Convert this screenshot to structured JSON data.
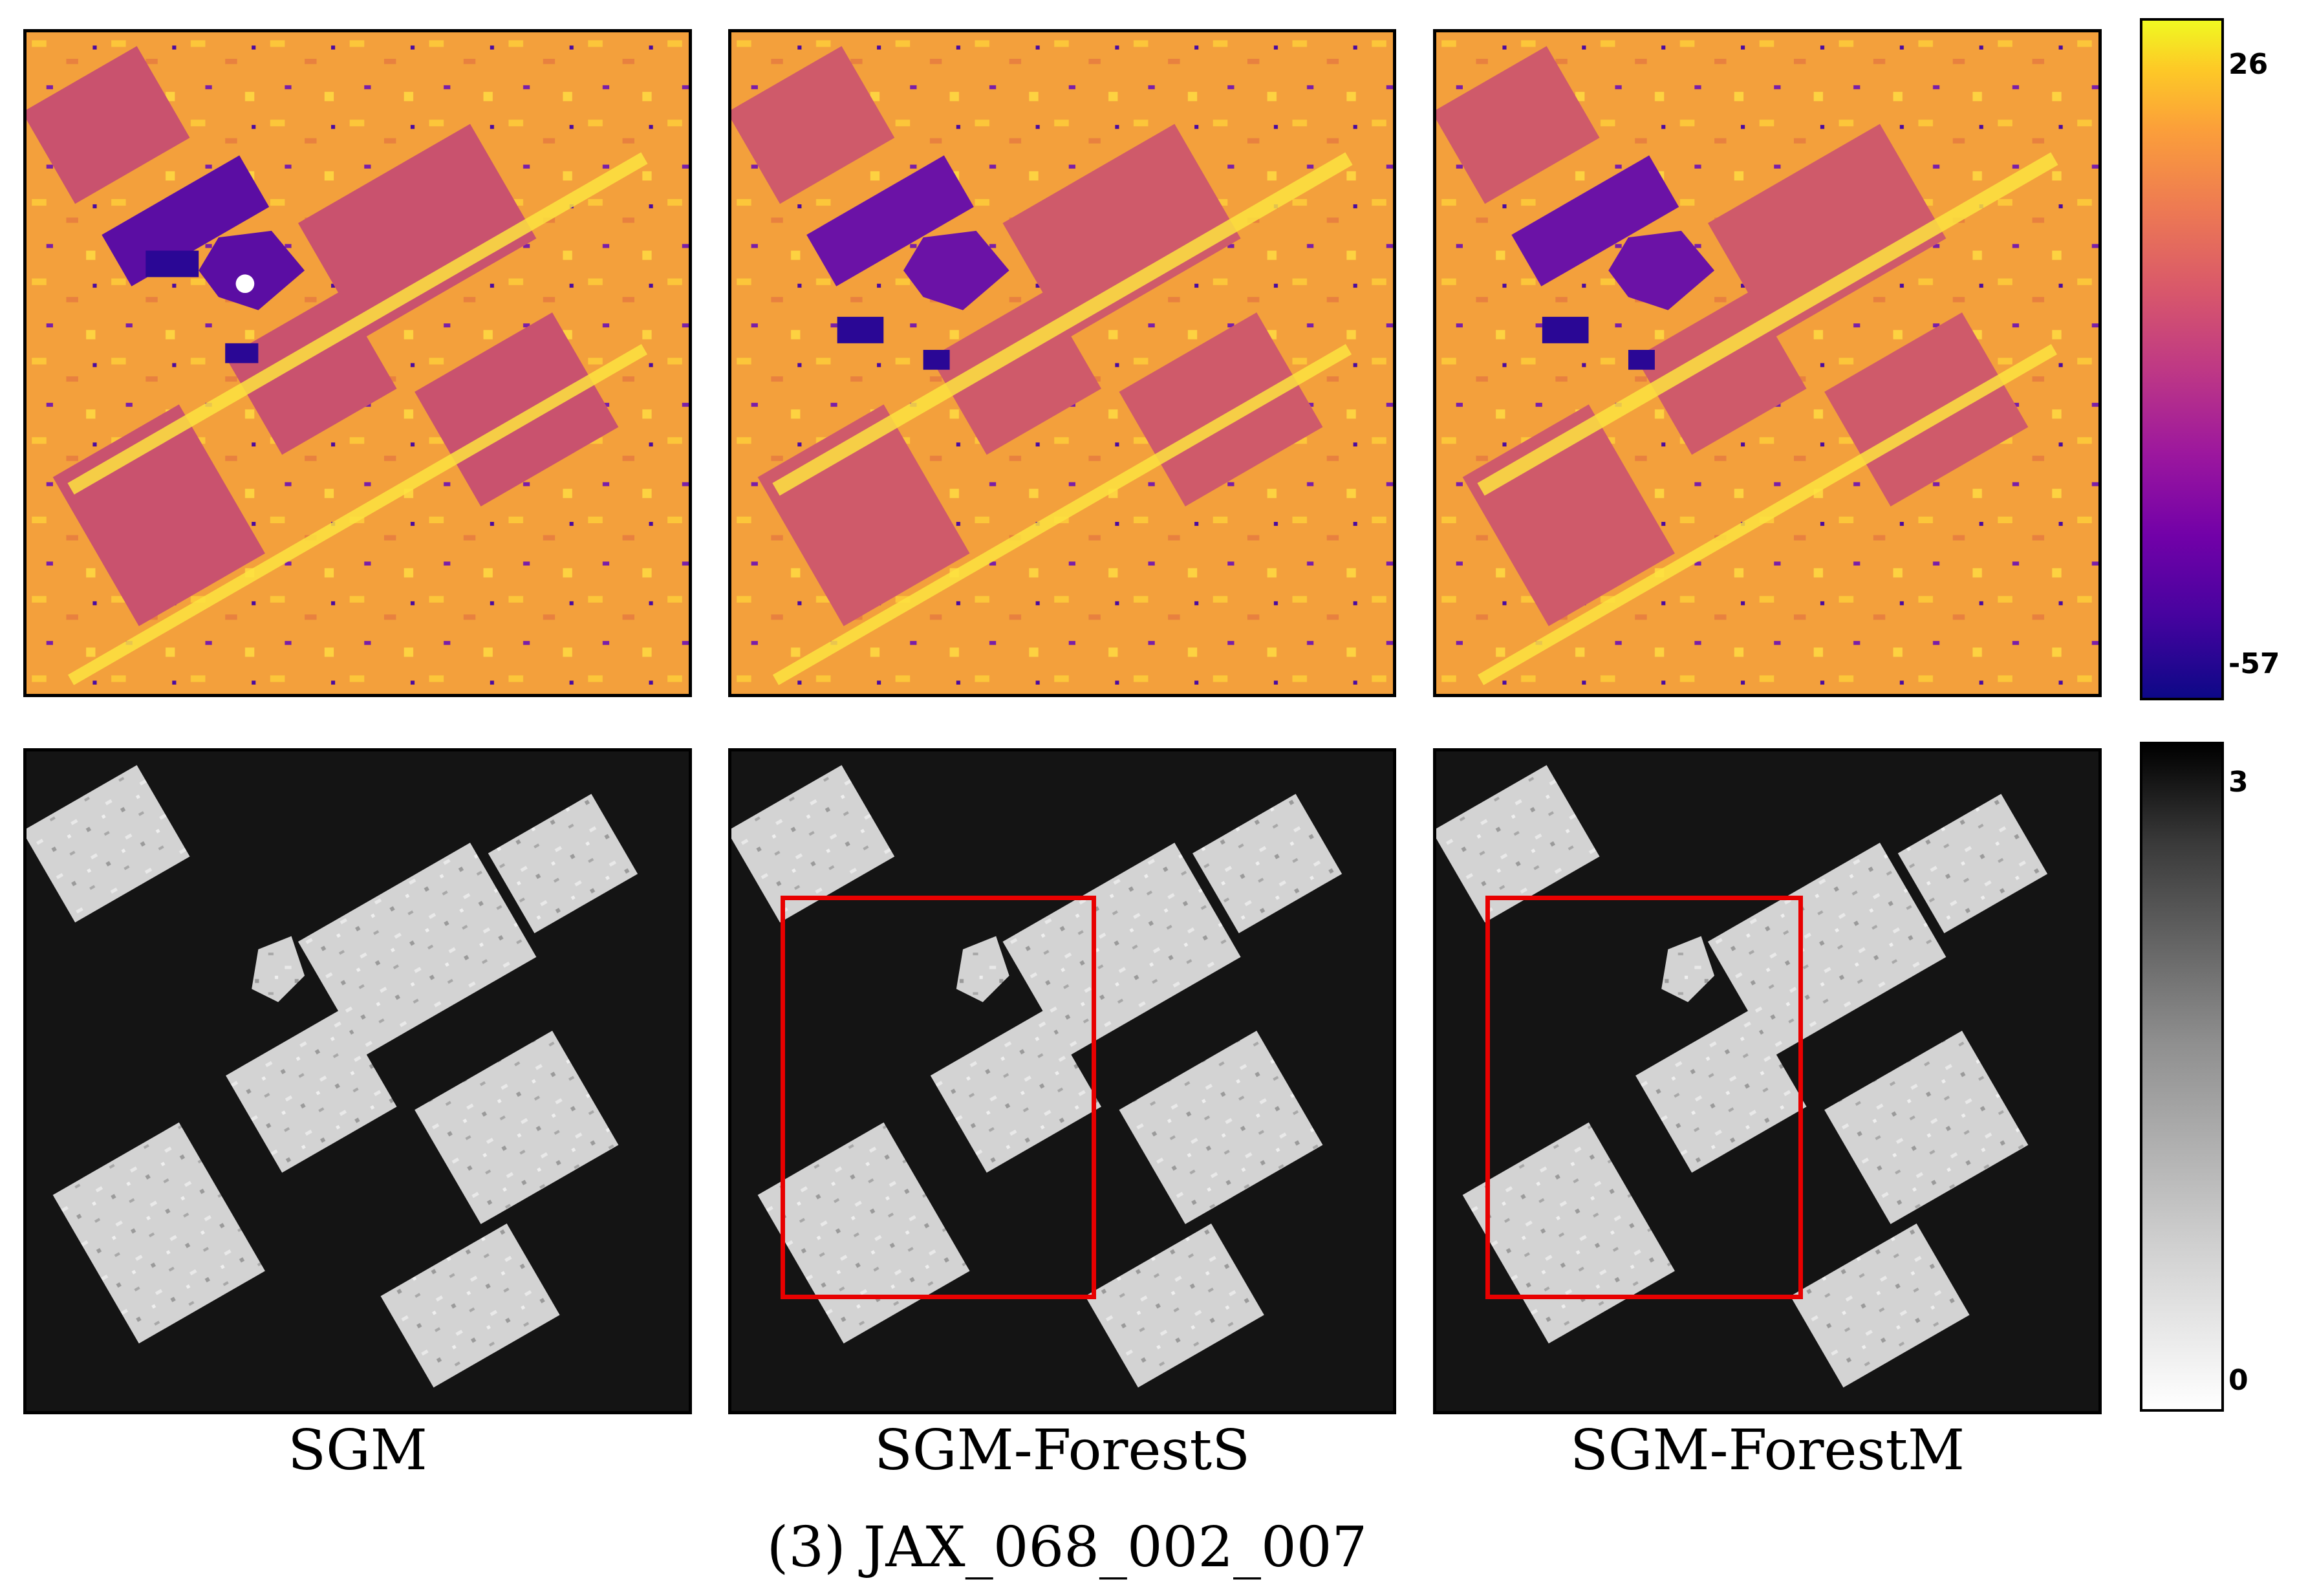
{
  "colorbars": {
    "top": {
      "max_label": "26",
      "min_label": "-57",
      "colormap": "plasma"
    },
    "bottom": {
      "max_label": "3",
      "min_label": "0",
      "colormap": "gray"
    }
  },
  "columns": [
    {
      "label": "SGM"
    },
    {
      "label": "SGM-ForestS"
    },
    {
      "label": "SGM-ForestM"
    }
  ],
  "caption": "(3) JAX_068_002_007",
  "highlight_color": "#e80000"
}
